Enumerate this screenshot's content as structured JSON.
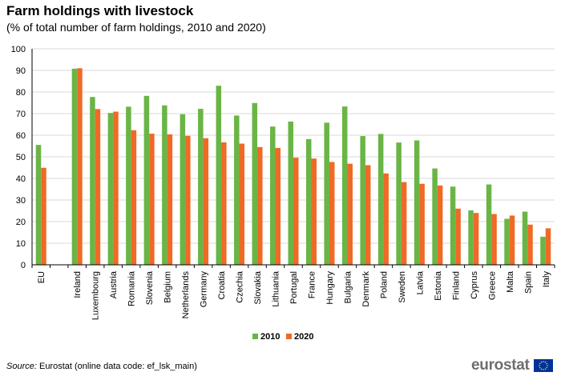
{
  "header": {
    "title": "Farm holdings with livestock",
    "subtitle": "(% of total number  of farm holdings,  2010 and 2020)"
  },
  "footer": {
    "source_label": "Source:",
    "source_text": " Eurostat (online data code: ef_lsk_main)",
    "logo_text": "eurostat"
  },
  "colors": {
    "s2010": "#6ab545",
    "s2020": "#ef6a26",
    "grid": "#d9d9d9",
    "flag": "#003399",
    "stars": "#ffcc00"
  },
  "chart_data": {
    "type": "bar",
    "title": "Farm holdings with livestock",
    "subtitle": "(% of total number  of farm holdings,  2010 and 2020)",
    "xlabel": "",
    "ylabel": "",
    "ylim": [
      0,
      100
    ],
    "yticks": [
      0,
      10,
      20,
      30,
      40,
      50,
      60,
      70,
      80,
      90,
      100
    ],
    "grid": true,
    "legend_position": "bottom-center",
    "categories": [
      "EU",
      "Ireland",
      "Luxembourg",
      "Austria",
      "Romania",
      "Slovenia",
      "Belgium",
      "Netherlands",
      "Germany",
      "Croatia",
      "Czechia",
      "Slovakia",
      "Lithuania",
      "Portugal",
      "France",
      "Hungary",
      "Bulgaria",
      "Denmark",
      "Poland",
      "Sweden",
      "Latvia",
      "Estonia",
      "Finland",
      "Cyprus",
      "Greece",
      "Malta",
      "Spain",
      "Italy"
    ],
    "series": [
      {
        "name": "2010",
        "values": [
          55.5,
          90.8,
          77.7,
          70.3,
          73.2,
          78.2,
          73.8,
          69.7,
          72.2,
          82.9,
          69.1,
          74.9,
          64.0,
          66.3,
          58.2,
          65.8,
          73.3,
          59.6,
          60.6,
          56.6,
          57.6,
          44.6,
          36.2,
          25.2,
          37.2,
          21.3,
          24.6,
          13.0
        ]
      },
      {
        "name": "2020",
        "values": [
          44.9,
          91.0,
          72.1,
          70.9,
          62.3,
          60.7,
          60.4,
          59.7,
          58.6,
          56.7,
          56.1,
          54.5,
          54.1,
          49.6,
          49.2,
          47.6,
          46.8,
          46.1,
          42.3,
          38.3,
          37.5,
          36.7,
          26.0,
          24.0,
          23.5,
          22.8,
          18.6,
          16.9
        ]
      }
    ]
  }
}
